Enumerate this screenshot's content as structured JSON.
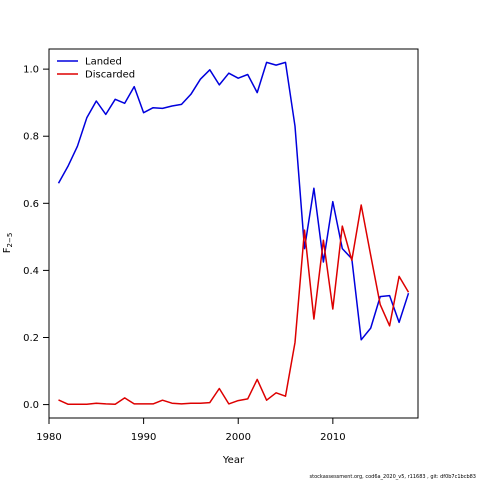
{
  "chart_data": {
    "type": "line",
    "xlabel": "Year",
    "ylabel": "F",
    "ylabel_sub": "2−5",
    "xlim": [
      1980,
      2019
    ],
    "ylim": [
      -0.04,
      1.06
    ],
    "x_ticks": [
      1980,
      1990,
      2000,
      2010
    ],
    "y_ticks": [
      "0.0",
      "0.2",
      "0.4",
      "0.6",
      "0.8",
      "1.0"
    ],
    "legend_position": "top-left",
    "series": [
      {
        "name": "Landed",
        "color": "#0000dd",
        "x": [
          1981,
          1982,
          1983,
          1984,
          1985,
          1986,
          1987,
          1988,
          1989,
          1990,
          1991,
          1992,
          1993,
          1994,
          1995,
          1996,
          1997,
          1998,
          1999,
          2000,
          2001,
          2002,
          2003,
          2004,
          2005,
          2006,
          2007,
          2008,
          2009,
          2010,
          2011,
          2012,
          2013,
          2014,
          2015,
          2016,
          2017,
          2018
        ],
        "values": [
          0.66,
          0.71,
          0.77,
          0.855,
          0.905,
          0.865,
          0.91,
          0.898,
          0.948,
          0.87,
          0.885,
          0.883,
          0.89,
          0.895,
          0.925,
          0.97,
          0.998,
          0.953,
          0.988,
          0.973,
          0.984,
          0.93,
          1.02,
          1.012,
          1.02,
          0.83,
          0.465,
          0.645,
          0.425,
          0.605,
          0.465,
          0.435,
          0.193,
          0.228,
          0.322,
          0.325,
          0.245,
          0.332
        ]
      },
      {
        "name": "Discarded",
        "color": "#dd0000",
        "x": [
          1981,
          1982,
          1983,
          1984,
          1985,
          1986,
          1987,
          1988,
          1989,
          1990,
          1991,
          1992,
          1993,
          1994,
          1995,
          1996,
          1997,
          1998,
          1999,
          2000,
          2001,
          2002,
          2003,
          2004,
          2005,
          2006,
          2007,
          2008,
          2009,
          2010,
          2011,
          2012,
          2013,
          2014,
          2015,
          2016,
          2017,
          2018
        ],
        "values": [
          0.014,
          0.001,
          0.001,
          0.001,
          0.004,
          0.002,
          0.001,
          0.02,
          0.002,
          0.002,
          0.002,
          0.013,
          0.004,
          0.002,
          0.004,
          0.004,
          0.006,
          0.048,
          0.002,
          0.012,
          0.017,
          0.075,
          0.013,
          0.035,
          0.025,
          0.185,
          0.52,
          0.255,
          0.49,
          0.285,
          0.532,
          0.43,
          0.595,
          0.445,
          0.298,
          0.235,
          0.382,
          0.335
        ]
      }
    ]
  },
  "footer": "stockassessment.org, cod6a_2020_v5, r11683 , git: df0b7c1bcb83"
}
